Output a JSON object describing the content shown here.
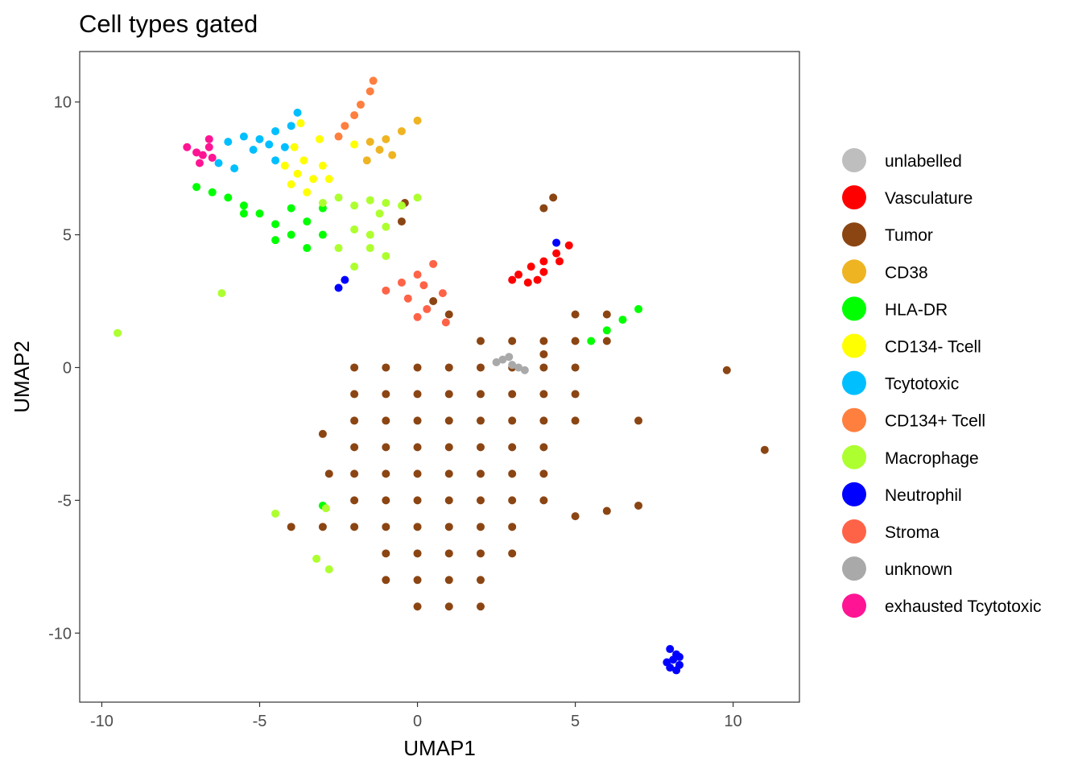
{
  "chart_data": {
    "type": "scatter",
    "title": "Cell types gated",
    "xlabel": "UMAP1",
    "ylabel": "UMAP2",
    "xlim": [
      -10.7,
      12.1
    ],
    "ylim": [
      -12.6,
      11.9
    ],
    "x_ticks": [
      -10,
      -5,
      0,
      5,
      10
    ],
    "y_ticks": [
      10,
      5,
      0,
      -5,
      -10
    ],
    "x_tick_labels": [
      "-10",
      "-5",
      "0",
      "5",
      "10"
    ],
    "y_tick_labels": [
      "10",
      "5",
      "0",
      "-5",
      "-10"
    ],
    "grid": false,
    "legend_position": "right",
    "legend": [
      {
        "name": "unlabelled",
        "color": "#BEBEBE"
      },
      {
        "name": "Vasculature",
        "color": "#FF0000"
      },
      {
        "name": "Tumor",
        "color": "#8B4513"
      },
      {
        "name": "CD38",
        "color": "#EEB422"
      },
      {
        "name": "HLA-DR",
        "color": "#00FF00"
      },
      {
        "name": "CD134- Tcell",
        "color": "#FFFF00"
      },
      {
        "name": "Tcytotoxic",
        "color": "#00BFFF"
      },
      {
        "name": "CD134+ Tcell",
        "color": "#FF7F3F"
      },
      {
        "name": "Macrophage",
        "color": "#ADFF2F"
      },
      {
        "name": "Neutrophil",
        "color": "#0000FF"
      },
      {
        "name": "Stroma",
        "color": "#FF6347"
      },
      {
        "name": "unknown",
        "color": "#A9A9A9"
      },
      {
        "name": "exhausted Tcytotoxic",
        "color": "#FF1493"
      }
    ],
    "series": [
      {
        "name": "Tumor",
        "color": "#8B4513",
        "points": [
          [
            -2,
            0
          ],
          [
            -1,
            0
          ],
          [
            0,
            0
          ],
          [
            1,
            0
          ],
          [
            2,
            0
          ],
          [
            3,
            0
          ],
          [
            4,
            0
          ],
          [
            5,
            0
          ],
          [
            -2,
            -1
          ],
          [
            -1,
            -1
          ],
          [
            0,
            -1
          ],
          [
            1,
            -1
          ],
          [
            2,
            -1
          ],
          [
            3,
            -1
          ],
          [
            4,
            -1
          ],
          [
            5,
            -1
          ],
          [
            -2,
            -2
          ],
          [
            -1,
            -2
          ],
          [
            0,
            -2
          ],
          [
            1,
            -2
          ],
          [
            2,
            -2
          ],
          [
            3,
            -2
          ],
          [
            4,
            -2
          ],
          [
            5,
            -2
          ],
          [
            -2,
            -3
          ],
          [
            -1,
            -3
          ],
          [
            0,
            -3
          ],
          [
            1,
            -3
          ],
          [
            2,
            -3
          ],
          [
            3,
            -3
          ],
          [
            4,
            -3
          ],
          [
            -2,
            -4
          ],
          [
            -1,
            -4
          ],
          [
            0,
            -4
          ],
          [
            1,
            -4
          ],
          [
            2,
            -4
          ],
          [
            3,
            -4
          ],
          [
            4,
            -4
          ],
          [
            -2,
            -5
          ],
          [
            -1,
            -5
          ],
          [
            0,
            -5
          ],
          [
            1,
            -5
          ],
          [
            2,
            -5
          ],
          [
            3,
            -5
          ],
          [
            4,
            -5
          ],
          [
            -2,
            -6
          ],
          [
            -1,
            -6
          ],
          [
            0,
            -6
          ],
          [
            1,
            -6
          ],
          [
            2,
            -6
          ],
          [
            3,
            -6
          ],
          [
            -1,
            -7
          ],
          [
            0,
            -7
          ],
          [
            1,
            -7
          ],
          [
            2,
            -7
          ],
          [
            3,
            -7
          ],
          [
            -1,
            -8
          ],
          [
            0,
            -8
          ],
          [
            1,
            -8
          ],
          [
            2,
            -8
          ],
          [
            0,
            -9
          ],
          [
            1,
            -9
          ],
          [
            2,
            -9
          ],
          [
            5,
            -5.6
          ],
          [
            6,
            -5.4
          ],
          [
            7,
            -5.2
          ],
          [
            -3,
            -2.5
          ],
          [
            -2.8,
            -4
          ],
          [
            -3,
            -6
          ],
          [
            -4,
            -6
          ],
          [
            2,
            1
          ],
          [
            3,
            1
          ],
          [
            4,
            1
          ],
          [
            5,
            1
          ],
          [
            6,
            1
          ],
          [
            6,
            2
          ],
          [
            5,
            2
          ],
          [
            4,
            0.5
          ],
          [
            1,
            2
          ],
          [
            0.5,
            2.5
          ],
          [
            4,
            6
          ],
          [
            4.3,
            6.4
          ],
          [
            -0.5,
            5.5
          ],
          [
            -0.4,
            6.2
          ],
          [
            7,
            -2
          ],
          [
            9.8,
            -0.1
          ],
          [
            11,
            -3.1
          ]
        ]
      },
      {
        "name": "Vasculature",
        "color": "#FF0000",
        "points": [
          [
            3.2,
            3.5
          ],
          [
            3.6,
            3.8
          ],
          [
            4.0,
            4.0
          ],
          [
            4.4,
            4.3
          ],
          [
            4.8,
            4.6
          ],
          [
            3.5,
            3.2
          ],
          [
            4.0,
            3.6
          ],
          [
            3.0,
            3.3
          ],
          [
            4.5,
            4.0
          ],
          [
            3.8,
            3.3
          ]
        ]
      },
      {
        "name": "CD38",
        "color": "#EEB422",
        "points": [
          [
            -1.5,
            8.5
          ],
          [
            -1.0,
            8.6
          ],
          [
            -0.5,
            8.9
          ],
          [
            0,
            9.3
          ],
          [
            -1.2,
            8.2
          ],
          [
            -0.8,
            8.0
          ],
          [
            -1.6,
            7.8
          ]
        ]
      },
      {
        "name": "HLA-DR",
        "color": "#00FF00",
        "points": [
          [
            -7,
            6.8
          ],
          [
            -6.5,
            6.6
          ],
          [
            -6,
            6.4
          ],
          [
            -5.5,
            6.1
          ],
          [
            -5,
            5.8
          ],
          [
            -4.5,
            5.4
          ],
          [
            -4,
            5
          ],
          [
            -3.5,
            4.5
          ],
          [
            -4,
            6
          ],
          [
            -3.5,
            5.5
          ],
          [
            -3,
            6
          ],
          [
            -3,
            5
          ],
          [
            -5.5,
            5.8
          ],
          [
            -4.5,
            4.8
          ],
          [
            5.5,
            1
          ],
          [
            6,
            1.4
          ],
          [
            6.5,
            1.8
          ],
          [
            7,
            2.2
          ],
          [
            -3,
            -5.2
          ]
        ]
      },
      {
        "name": "CD134- Tcell",
        "color": "#FFFF00",
        "points": [
          [
            -4,
            6.9
          ],
          [
            -3.8,
            7.3
          ],
          [
            -3.6,
            7.8
          ],
          [
            -3.9,
            8.3
          ],
          [
            -3.3,
            7.1
          ],
          [
            -3.5,
            6.6
          ],
          [
            -3,
            7.6
          ],
          [
            -3.7,
            9.2
          ],
          [
            -3.1,
            8.6
          ],
          [
            -2.8,
            7.1
          ],
          [
            -4.2,
            7.6
          ],
          [
            -2,
            8.4
          ]
        ]
      },
      {
        "name": "Tcytotoxic",
        "color": "#00BFFF",
        "points": [
          [
            -6,
            8.5
          ],
          [
            -5.5,
            8.7
          ],
          [
            -5,
            8.6
          ],
          [
            -4.5,
            8.9
          ],
          [
            -4,
            9.1
          ],
          [
            -5.2,
            8.2
          ],
          [
            -4.7,
            8.4
          ],
          [
            -4.2,
            8.3
          ],
          [
            -6.3,
            7.7
          ],
          [
            -5.8,
            7.5
          ],
          [
            -4.5,
            7.8
          ],
          [
            -3.8,
            9.6
          ]
        ]
      },
      {
        "name": "CD134+ Tcell",
        "color": "#FF7F3F",
        "points": [
          [
            -2.5,
            8.7
          ],
          [
            -2.3,
            9.1
          ],
          [
            -2.0,
            9.5
          ],
          [
            -1.8,
            9.9
          ],
          [
            -1.5,
            10.4
          ],
          [
            -1.4,
            10.8
          ]
        ]
      },
      {
        "name": "Macrophage",
        "color": "#ADFF2F",
        "points": [
          [
            -2.5,
            6.4
          ],
          [
            -2,
            6.1
          ],
          [
            -1.5,
            6.3
          ],
          [
            -1,
            6.2
          ],
          [
            -0.5,
            6.1
          ],
          [
            0,
            6.4
          ],
          [
            -2,
            5.2
          ],
          [
            -1.5,
            5.0
          ],
          [
            -1,
            5.3
          ],
          [
            -2.5,
            4.5
          ],
          [
            -2,
            3.8
          ],
          [
            -1.5,
            4.5
          ],
          [
            -1,
            4.2
          ],
          [
            -3,
            6.2
          ],
          [
            -1.2,
            5.8
          ],
          [
            -2.8,
            -7.6
          ],
          [
            -3.2,
            -7.2
          ],
          [
            -2.9,
            -5.3
          ],
          [
            -4.5,
            -5.5
          ],
          [
            -9.5,
            1.3
          ],
          [
            -6.2,
            2.8
          ]
        ]
      },
      {
        "name": "Neutrophil",
        "color": "#0000FF",
        "points": [
          [
            8.0,
            -10.6
          ],
          [
            8.2,
            -10.8
          ],
          [
            8.1,
            -11.0
          ],
          [
            8.3,
            -11.2
          ],
          [
            7.9,
            -11.1
          ],
          [
            8.2,
            -11.4
          ],
          [
            8.0,
            -11.3
          ],
          [
            8.3,
            -10.9
          ],
          [
            -2.3,
            3.3
          ],
          [
            -2.5,
            3.0
          ],
          [
            4.4,
            4.7
          ]
        ]
      },
      {
        "name": "Stroma",
        "color": "#FF6347",
        "points": [
          [
            -0.5,
            3.2
          ],
          [
            0,
            3.5
          ],
          [
            0.5,
            3.9
          ],
          [
            -0.3,
            2.6
          ],
          [
            0.3,
            2.2
          ],
          [
            0.8,
            2.8
          ],
          [
            -1,
            2.9
          ],
          [
            0,
            1.9
          ],
          [
            0.9,
            1.7
          ],
          [
            0.2,
            3.1
          ]
        ]
      },
      {
        "name": "unknown",
        "color": "#A9A9A9",
        "points": [
          [
            2.7,
            0.3
          ],
          [
            3.0,
            0.1
          ],
          [
            3.2,
            0.0
          ],
          [
            3.4,
            -0.1
          ],
          [
            2.9,
            0.4
          ],
          [
            2.5,
            0.2
          ]
        ]
      },
      {
        "name": "exhausted Tcytotoxic",
        "color": "#FF1493",
        "points": [
          [
            -7.3,
            8.3
          ],
          [
            -7.0,
            8.1
          ],
          [
            -6.8,
            8.0
          ],
          [
            -6.6,
            8.3
          ],
          [
            -6.5,
            7.9
          ],
          [
            -6.9,
            7.7
          ],
          [
            -6.6,
            8.6
          ]
        ]
      }
    ]
  }
}
